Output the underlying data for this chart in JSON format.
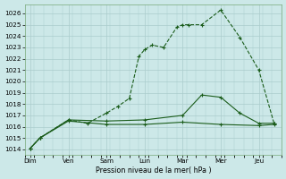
{
  "background_color": "#cce8e8",
  "grid_color": "#aacccc",
  "line_color": "#1a5c1a",
  "x_labels": [
    "Dim",
    "Ven",
    "Sam",
    "Lun",
    "Mar",
    "Mer",
    "Jeu"
  ],
  "x_tick_pos": [
    0,
    1,
    2,
    3,
    4,
    5,
    6
  ],
  "xlabel": "Pression niveau de la mer( hPa )",
  "ylim": [
    1013.5,
    1026.8
  ],
  "yticks": [
    1014,
    1015,
    1016,
    1017,
    1018,
    1019,
    1020,
    1021,
    1022,
    1023,
    1024,
    1025,
    1026
  ],
  "xlim": [
    -0.15,
    6.6
  ],
  "series1": {
    "x": [
      0.0,
      0.25,
      1.0,
      1.5,
      2.0,
      2.3,
      2.6,
      2.85,
      3.0,
      3.2,
      3.5,
      3.85,
      4.0,
      4.15,
      4.5,
      5.0,
      5.5,
      6.0,
      6.4
    ],
    "y": [
      1014.1,
      1015.0,
      1016.6,
      1016.3,
      1017.2,
      1017.8,
      1018.5,
      1022.2,
      1022.8,
      1023.2,
      1023.0,
      1024.8,
      1025.0,
      1025.0,
      1025.0,
      1026.3,
      1023.9,
      1021.0,
      1016.3
    ]
  },
  "series2": {
    "x": [
      0.0,
      0.25,
      1.0,
      2.0,
      3.0,
      4.0,
      4.5,
      5.0,
      5.5,
      6.0,
      6.4
    ],
    "y": [
      1014.1,
      1015.0,
      1016.6,
      1016.5,
      1016.6,
      1017.0,
      1018.8,
      1018.6,
      1017.2,
      1016.3,
      1016.3
    ]
  },
  "series3": {
    "x": [
      0.0,
      0.25,
      1.0,
      2.0,
      3.0,
      4.0,
      5.0,
      6.0,
      6.4
    ],
    "y": [
      1014.1,
      1015.0,
      1016.5,
      1016.2,
      1016.2,
      1016.4,
      1016.2,
      1016.1,
      1016.2
    ]
  }
}
